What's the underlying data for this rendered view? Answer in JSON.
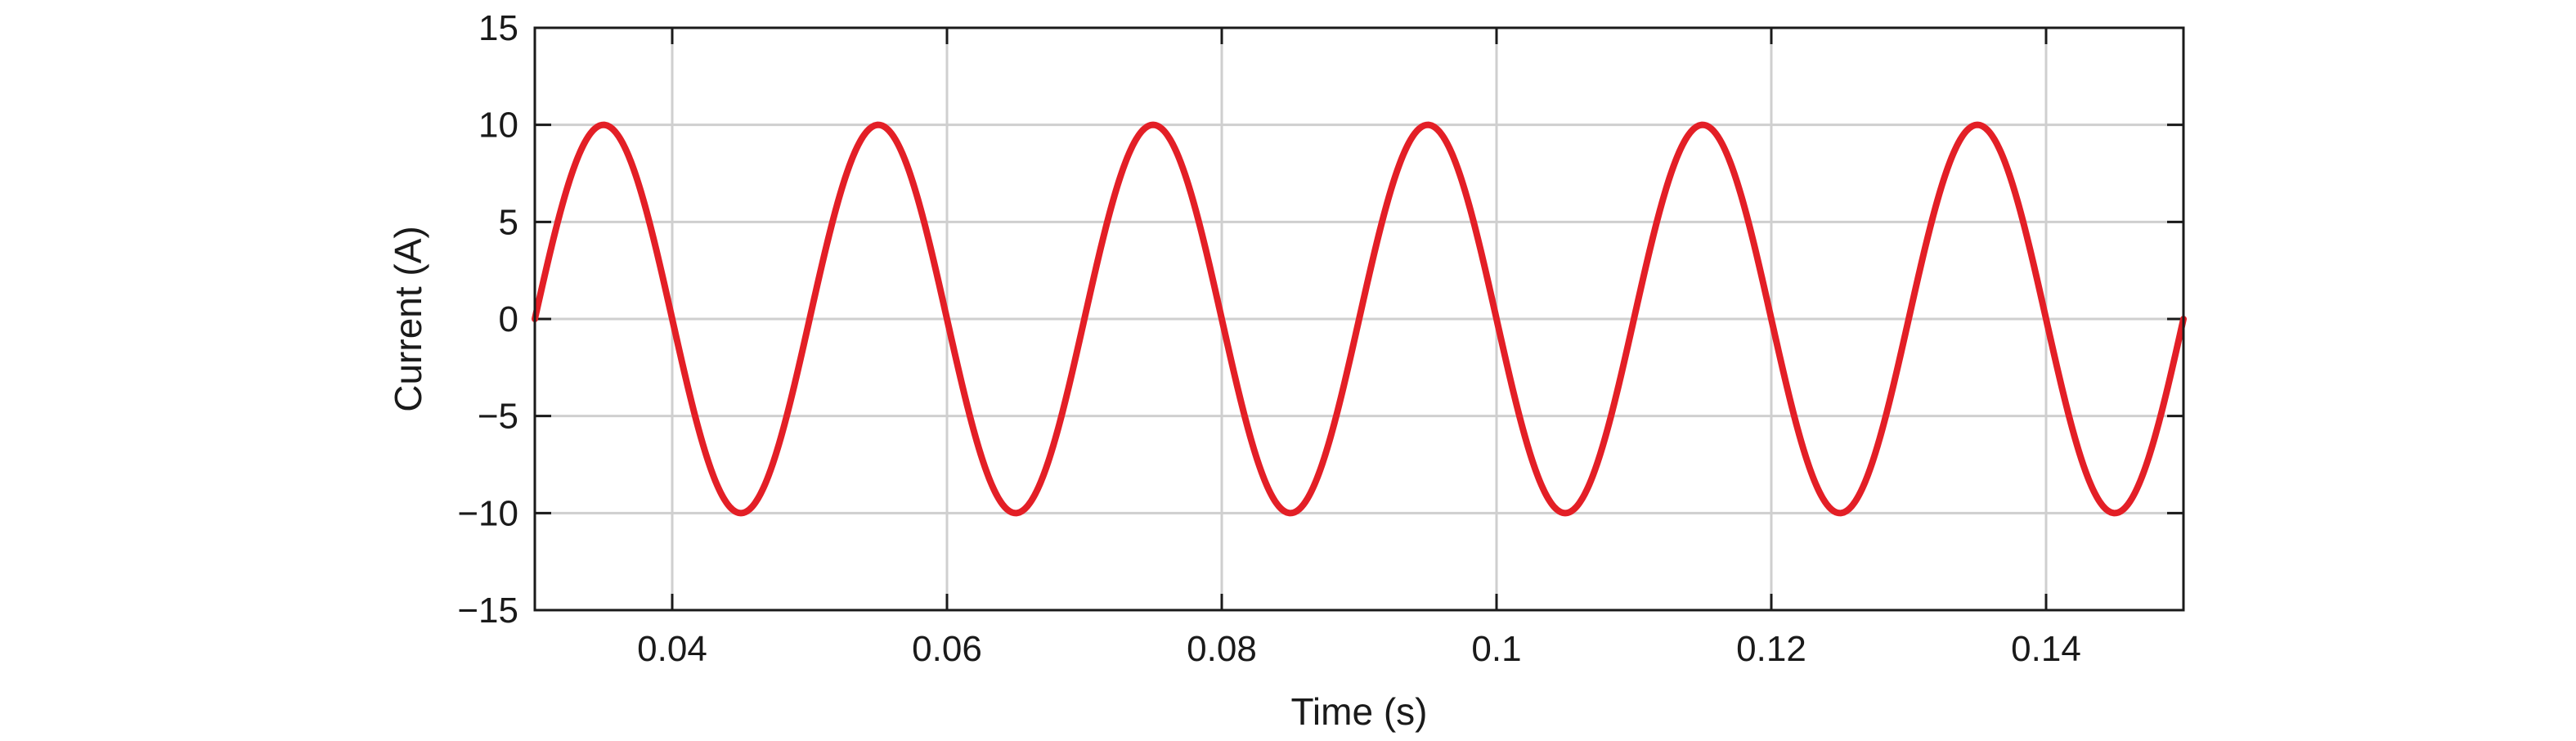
{
  "chart_data": {
    "type": "line",
    "xlabel": "Time (s)",
    "ylabel": "Current (A)",
    "xlim": [
      0.03,
      0.15
    ],
    "ylim": [
      -15,
      15
    ],
    "xticks": [
      0.04,
      0.06,
      0.08,
      0.1,
      0.12,
      0.14
    ],
    "xtick_labels": [
      "0.04",
      "0.06",
      "0.08",
      "0.1",
      "0.12",
      "0.14"
    ],
    "yticks": [
      -15,
      -10,
      -5,
      0,
      5,
      10,
      15
    ],
    "ytick_labels": [
      "−15",
      "−10",
      "−5",
      "0",
      "5",
      "10",
      "15"
    ],
    "grid": true,
    "series": [
      {
        "color": "#e31f26",
        "function": "sinusoid",
        "amplitude": 10,
        "frequency_hz": 50,
        "phase_deg": 180,
        "x_range": [
          0.03,
          0.15
        ]
      }
    ]
  }
}
